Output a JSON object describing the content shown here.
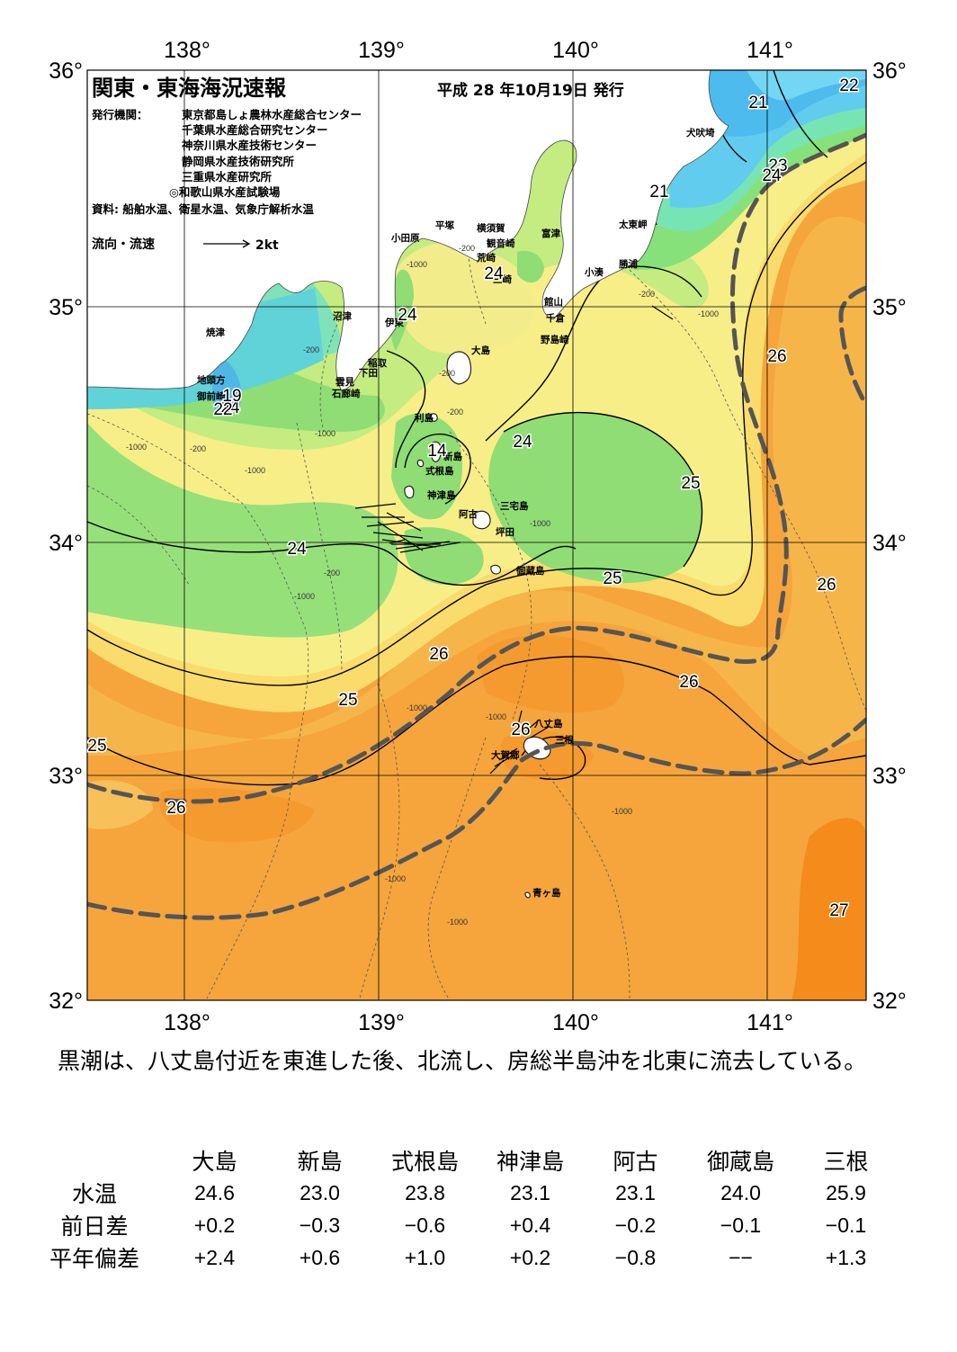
{
  "map": {
    "title": "関東・東海海況速報",
    "issue_date": "平成 28 年10月19日 発行",
    "issuers_label": "発行機関：",
    "issuers": [
      "東京都島しょ農林水産総合センター",
      "千葉県水産総合研究センター",
      "神奈川県水産技術センター",
      "静岡県水産技術研究所",
      "三重県水産研究所",
      "◎和歌山県水産試験場"
    ],
    "source": "資料: 船舶水温、衛星水温、気象庁解析水温",
    "flow_legend_label": "流向・流速",
    "flow_legend_scale": "2kt",
    "lon_labels": [
      "138°",
      "139°",
      "140°",
      "141°"
    ],
    "lat_labels": [
      "36°",
      "35°",
      "34°",
      "33°",
      "32°"
    ],
    "place_names": {
      "inubosaki": "犬吠埼",
      "taitomisaki": "太東岬",
      "katsuura": "勝浦",
      "kominato": "小湊",
      "tomitsu": "富津",
      "kannonzaki": "観音崎",
      "yokosuka": "横須賀",
      "hiratsuka": "平塚",
      "odawara": "小田原",
      "araisaki": "荒崎",
      "misaki": "三崎",
      "tateyama": "館山",
      "chikura": "千倉",
      "nojimazaki": "野島崎",
      "numazu": "沼津",
      "ito": "伊東",
      "inatori": "稲取",
      "shimoda": "下田",
      "kumomi": "雲見",
      "irozaki": "石廊崎",
      "yaizu": "焼津",
      "jitogata": "地頭方",
      "omaezaki": "御前崎",
      "oshima": "大島",
      "toshima": "利島",
      "niijima": "新島",
      "shikinejima": "式根島",
      "kozushima": "神津島",
      "miyakejima": "三宅島",
      "ako": "阿古",
      "tsubota": "坪田",
      "mikurajima": "御蔵島",
      "hachijojima": "八丈島",
      "mitsune": "三根",
      "okago": "大賀郷",
      "aogashima": "青ヶ島"
    },
    "isotherm_labels": [
      "21",
      "21",
      "22",
      "23",
      "24",
      "24",
      "24",
      "24",
      "24",
      "24",
      "25",
      "25",
      "25",
      "25",
      "26",
      "26",
      "26",
      "26",
      "26",
      "26",
      "27",
      "19",
      "22",
      "14"
    ],
    "depth_labels": [
      "-200",
      "-1000"
    ],
    "colors": {
      "t19": "#4fc6e9",
      "t21": "#5ec8ee",
      "t22": "#72d7f3",
      "t23": "#77e4b4",
      "t24": "#88e07a",
      "t24_5": "#b6ea7c",
      "t25": "#f5ef88",
      "t25_5": "#f9d86c",
      "t26": "#f6b03e",
      "t26_5": "#f5a03a",
      "t27": "#f48b1a",
      "land": "#ffffff",
      "kuroshio_axis": "#555555"
    }
  },
  "summary_text": "黒潮は、八丈島付近を東進した後、北流し、房総半島沖を北東に流去している。",
  "table": {
    "columns": [
      "大島",
      "新島",
      "式根島",
      "神津島",
      "阿古",
      "御蔵島",
      "三根"
    ],
    "rows": [
      {
        "label": "水温",
        "values": [
          "24.6",
          "23.0",
          "23.8",
          "23.1",
          "23.1",
          "24.0",
          "25.9"
        ]
      },
      {
        "label": "前日差",
        "values": [
          "+0.2",
          "−0.3",
          "−0.6",
          "+0.4",
          "−0.2",
          "−0.1",
          "−0.1"
        ]
      },
      {
        "label": "平年偏差",
        "values": [
          "+2.4",
          "+0.6",
          "+1.0",
          "+0.2",
          "−0.8",
          "−−",
          "+1.3"
        ]
      }
    ]
  }
}
